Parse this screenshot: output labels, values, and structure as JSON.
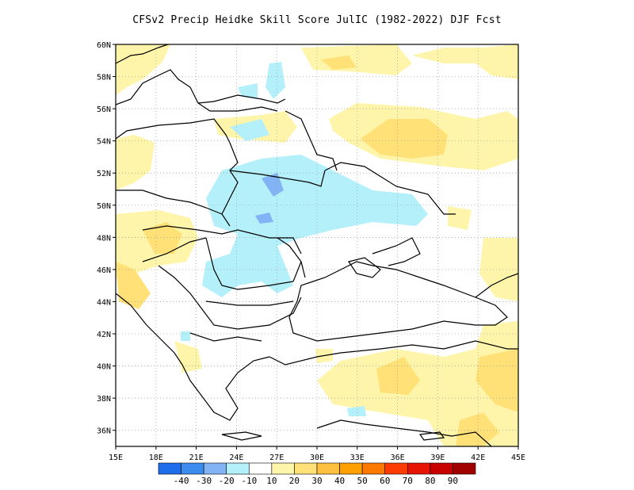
{
  "title": "CFSv2 Precip Heidke Skill Score JulIC (1982-2022) DJF Fcst",
  "map": {
    "lon_range": [
      15,
      45
    ],
    "lat_range": [
      35,
      60
    ],
    "lon_ticks": [
      "15E",
      "18E",
      "21E",
      "24E",
      "27E",
      "30E",
      "33E",
      "36E",
      "39E",
      "42E",
      "45E"
    ],
    "lat_ticks": [
      "36N",
      "38N",
      "40N",
      "42N",
      "44N",
      "46N",
      "48N",
      "50N",
      "52N",
      "54N",
      "56N",
      "58N",
      "60N"
    ],
    "grid": true
  },
  "colorbar": {
    "colors": [
      "#1e6eeb",
      "#3c8cf0",
      "#82b4f5",
      "#b4f0fa",
      "#ffffff",
      "#fff5aa",
      "#ffe178",
      "#ffc040",
      "#ffa000",
      "#ff7800",
      "#ff3c00",
      "#e61400",
      "#c80000",
      "#a00000"
    ],
    "labels": [
      "-40",
      "-30",
      "-20",
      "-10",
      "10",
      "20",
      "30",
      "40",
      "50",
      "60",
      "70",
      "80",
      "90"
    ]
  },
  "fields": {
    "positive_color_10_20": "#fff5aa",
    "positive_color_20_30": "#ffe178",
    "negative_color_10": "#b4f0fa",
    "negative_color_20_30": "#82b4f5"
  }
}
